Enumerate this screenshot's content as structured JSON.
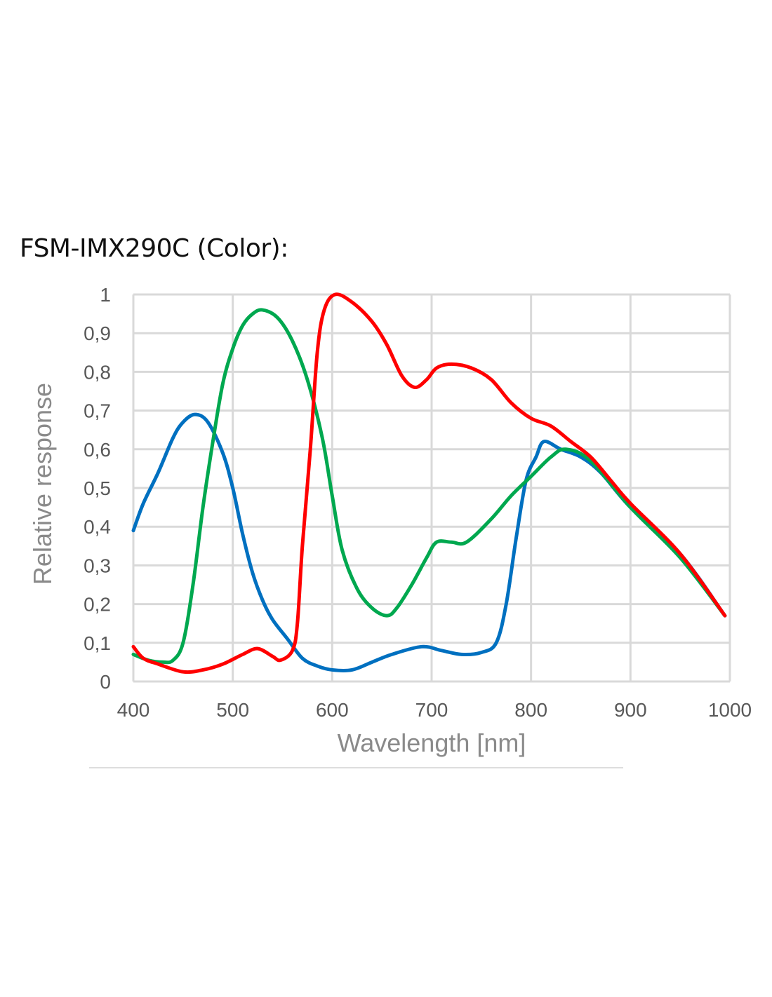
{
  "chart_data": {
    "type": "line",
    "title": "FSM-IMX290C (Color):",
    "xlabel": "Wavelength [nm]",
    "ylabel": "Relative response",
    "xlim": [
      400,
      1000
    ],
    "ylim": [
      0,
      1
    ],
    "grid": true,
    "x_ticks": [
      "400",
      "500",
      "600",
      "700",
      "800",
      "900",
      "1000"
    ],
    "y_ticks": [
      "0",
      "0,1",
      "0,2",
      "0,3",
      "0,4",
      "0,5",
      "0,6",
      "0,7",
      "0,8",
      "0,9",
      "1"
    ],
    "series": [
      {
        "name": "Blue",
        "color": "#0070c0",
        "points": [
          [
            400,
            0.39
          ],
          [
            410,
            0.46
          ],
          [
            425,
            0.54
          ],
          [
            440,
            0.63
          ],
          [
            450,
            0.67
          ],
          [
            462,
            0.69
          ],
          [
            475,
            0.67
          ],
          [
            490,
            0.59
          ],
          [
            500,
            0.5
          ],
          [
            510,
            0.38
          ],
          [
            520,
            0.28
          ],
          [
            530,
            0.21
          ],
          [
            540,
            0.16
          ],
          [
            555,
            0.11
          ],
          [
            570,
            0.06
          ],
          [
            585,
            0.04
          ],
          [
            600,
            0.03
          ],
          [
            620,
            0.03
          ],
          [
            640,
            0.05
          ],
          [
            660,
            0.07
          ],
          [
            690,
            0.09
          ],
          [
            710,
            0.08
          ],
          [
            730,
            0.07
          ],
          [
            750,
            0.075
          ],
          [
            765,
            0.1
          ],
          [
            775,
            0.2
          ],
          [
            785,
            0.37
          ],
          [
            795,
            0.52
          ],
          [
            805,
            0.58
          ],
          [
            813,
            0.62
          ],
          [
            830,
            0.6
          ],
          [
            850,
            0.58
          ],
          [
            870,
            0.54
          ],
          [
            900,
            0.45
          ],
          [
            950,
            0.33
          ],
          [
            995,
            0.17
          ]
        ]
      },
      {
        "name": "Green",
        "color": "#00a84f",
        "points": [
          [
            400,
            0.07
          ],
          [
            415,
            0.055
          ],
          [
            430,
            0.05
          ],
          [
            440,
            0.055
          ],
          [
            450,
            0.1
          ],
          [
            460,
            0.25
          ],
          [
            470,
            0.45
          ],
          [
            480,
            0.62
          ],
          [
            490,
            0.77
          ],
          [
            500,
            0.86
          ],
          [
            510,
            0.92
          ],
          [
            520,
            0.95
          ],
          [
            530,
            0.96
          ],
          [
            545,
            0.94
          ],
          [
            560,
            0.88
          ],
          [
            575,
            0.78
          ],
          [
            590,
            0.63
          ],
          [
            600,
            0.48
          ],
          [
            610,
            0.34
          ],
          [
            625,
            0.24
          ],
          [
            640,
            0.19
          ],
          [
            655,
            0.17
          ],
          [
            665,
            0.19
          ],
          [
            680,
            0.25
          ],
          [
            695,
            0.32
          ],
          [
            705,
            0.36
          ],
          [
            720,
            0.36
          ],
          [
            735,
            0.36
          ],
          [
            760,
            0.42
          ],
          [
            780,
            0.48
          ],
          [
            800,
            0.53
          ],
          [
            820,
            0.58
          ],
          [
            835,
            0.6
          ],
          [
            860,
            0.57
          ],
          [
            900,
            0.45
          ],
          [
            950,
            0.32
          ],
          [
            995,
            0.17
          ]
        ]
      },
      {
        "name": "Red",
        "color": "#ff0000",
        "points": [
          [
            400,
            0.09
          ],
          [
            410,
            0.06
          ],
          [
            425,
            0.045
          ],
          [
            450,
            0.025
          ],
          [
            470,
            0.03
          ],
          [
            490,
            0.045
          ],
          [
            510,
            0.07
          ],
          [
            525,
            0.085
          ],
          [
            540,
            0.065
          ],
          [
            548,
            0.055
          ],
          [
            560,
            0.08
          ],
          [
            565,
            0.15
          ],
          [
            570,
            0.35
          ],
          [
            578,
            0.6
          ],
          [
            585,
            0.85
          ],
          [
            592,
            0.96
          ],
          [
            603,
            1.0
          ],
          [
            620,
            0.98
          ],
          [
            640,
            0.93
          ],
          [
            655,
            0.87
          ],
          [
            670,
            0.79
          ],
          [
            683,
            0.76
          ],
          [
            695,
            0.78
          ],
          [
            705,
            0.81
          ],
          [
            720,
            0.82
          ],
          [
            740,
            0.81
          ],
          [
            760,
            0.78
          ],
          [
            780,
            0.72
          ],
          [
            800,
            0.68
          ],
          [
            820,
            0.66
          ],
          [
            840,
            0.62
          ],
          [
            860,
            0.58
          ],
          [
            880,
            0.52
          ],
          [
            900,
            0.46
          ],
          [
            950,
            0.33
          ],
          [
            995,
            0.17
          ]
        ]
      }
    ]
  }
}
